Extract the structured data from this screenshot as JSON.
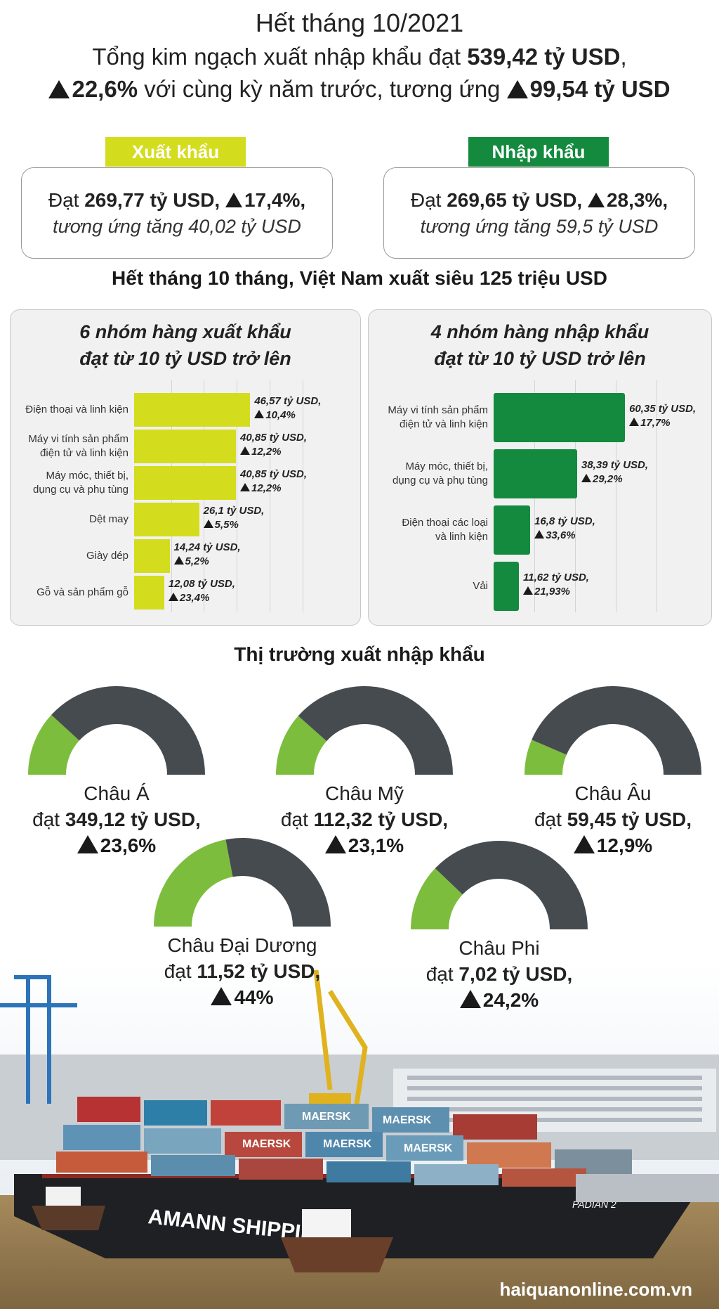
{
  "header": {
    "title": "Hết tháng 10/2021",
    "line1_prefix": "Tổng kim ngạch xuất nhập khẩu đạt ",
    "line1_total": "539,42 tỷ USD",
    "line1_suffix": ",",
    "line2_growth": "22,6%",
    "line2_mid": " với cùng kỳ năm trước, tương ứng ",
    "line2_increase": "99,54 tỷ USD"
  },
  "export": {
    "tag": "Xuất khẩu",
    "prefix": "Đạt ",
    "value": "269,77 tỷ USD,",
    "growth": "17,4%,",
    "note": "tương ứng tăng 40,02 tỷ USD"
  },
  "import": {
    "tag": "Nhập khẩu",
    "prefix": "Đạt ",
    "value": "269,65 tỷ USD,",
    "growth": "28,3%,",
    "note": "tương ứng tăng 59,5 tỷ USD"
  },
  "surplus": {
    "prefix": "Hết tháng 10 tháng, Việt Nam xuất siêu ",
    "value": "125 triệu USD"
  },
  "colors": {
    "export_bar": "#d4dc1e",
    "export_tag": "#d4dc1e",
    "import_bar": "#138a3e",
    "import_tag": "#138a3e",
    "gauge_green": "#7dbd3d",
    "gauge_dark": "#464b50"
  },
  "chart_data": [
    {
      "type": "bar",
      "orientation": "horizontal",
      "title_line1": "6 nhóm hàng xuất khẩu",
      "title_line2": "đạt từ 10 tỷ USD trở lên",
      "categories": [
        "Điện thoại và linh kiện",
        "Máy vi tính sản phẩm điện tử và linh kiện",
        "Máy móc, thiết bị, dụng cụ và phụ tùng",
        "Dệt may",
        "Giày dép",
        "Gỗ và sản phẩm gỗ"
      ],
      "category_lines": [
        [
          "Điện thoại và linh kiện"
        ],
        [
          "Máy vi tính sản phẩm",
          "điện tử và linh kiện"
        ],
        [
          "Máy móc, thiết bị,",
          "dụng cụ và phụ tùng"
        ],
        [
          "Dệt may"
        ],
        [
          "Giày dép"
        ],
        [
          "Gỗ và sản phẩm gỗ"
        ]
      ],
      "values": [
        46.57,
        40.85,
        40.85,
        26.1,
        14.24,
        12.08
      ],
      "value_labels": [
        "46,57 tỷ USD,",
        "40,85 tỷ USD,",
        "40,85 tỷ USD,",
        "26,1 tỷ USD,",
        "14,24 tỷ USD,",
        "12,08 tỷ USD,"
      ],
      "growth_labels": [
        "10,4%",
        "12,2%",
        "12,2%",
        "5,5%",
        "5,2%",
        "23,4%"
      ],
      "unit": "tỷ USD",
      "grid": true
    },
    {
      "type": "bar",
      "orientation": "horizontal",
      "title_line1": "4 nhóm hàng nhập khẩu",
      "title_line2": "đạt từ 10 tỷ USD trở lên",
      "categories": [
        "Máy vi tính sản phẩm điện tử và linh kiện",
        "Máy móc, thiết bị, dụng cụ và phụ tùng",
        "Điện thoại các loại và linh kiện",
        "Vải"
      ],
      "category_lines": [
        [
          "Máy vi tính sản phẩm",
          "điện tử và linh kiện"
        ],
        [
          "Máy móc, thiết bị,",
          "dụng cụ và phụ tùng"
        ],
        [
          "Điện thoại các loại",
          "và linh kiện"
        ],
        [
          "Vải"
        ]
      ],
      "values": [
        60.35,
        38.39,
        16.8,
        11.62
      ],
      "value_labels": [
        "60,35 tỷ USD,",
        "38,39 tỷ USD,",
        "16,8 tỷ USD,",
        "11,62 tỷ USD,"
      ],
      "growth_labels": [
        "17,7%",
        "29,2%",
        "33,6%",
        "21,93%"
      ],
      "unit": "tỷ USD",
      "grid": true
    },
    {
      "type": "pie",
      "style": "half-donut gauge",
      "title": "Thị trường xuất nhập khẩu",
      "regions": [
        {
          "name": "Châu Á",
          "prefix": "đạt ",
          "value_label": "349,12 tỷ USD,",
          "value": 349.12,
          "growth": "23,6%",
          "growth_pct": 23.6
        },
        {
          "name": "Châu Mỹ",
          "prefix": "đạt ",
          "value_label": "112,32 tỷ USD,",
          "value": 112.32,
          "growth": "23,1%",
          "growth_pct": 23.1
        },
        {
          "name": "Châu Âu",
          "prefix": "đạt ",
          "value_label": "59,45 tỷ USD,",
          "value": 59.45,
          "growth": "12,9%",
          "growth_pct": 12.9
        },
        {
          "name": "Châu Đại Dương",
          "prefix": "đạt ",
          "value_label": "11,52 tỷ USD,",
          "value": 11.52,
          "growth": "44%",
          "growth_pct": 44
        },
        {
          "name": "Châu Phi",
          "prefix": "đạt ",
          "value_label": "7,02 tỷ USD,",
          "value": 7.02,
          "growth": "24,2%",
          "growth_pct": 24.2
        }
      ]
    }
  ],
  "photo": {
    "ship_text": "AMANN SHIPPING",
    "container_brand": "MAERSK",
    "ship_name": "PADIAN 2"
  },
  "source": "haiquanonline.com.vn"
}
